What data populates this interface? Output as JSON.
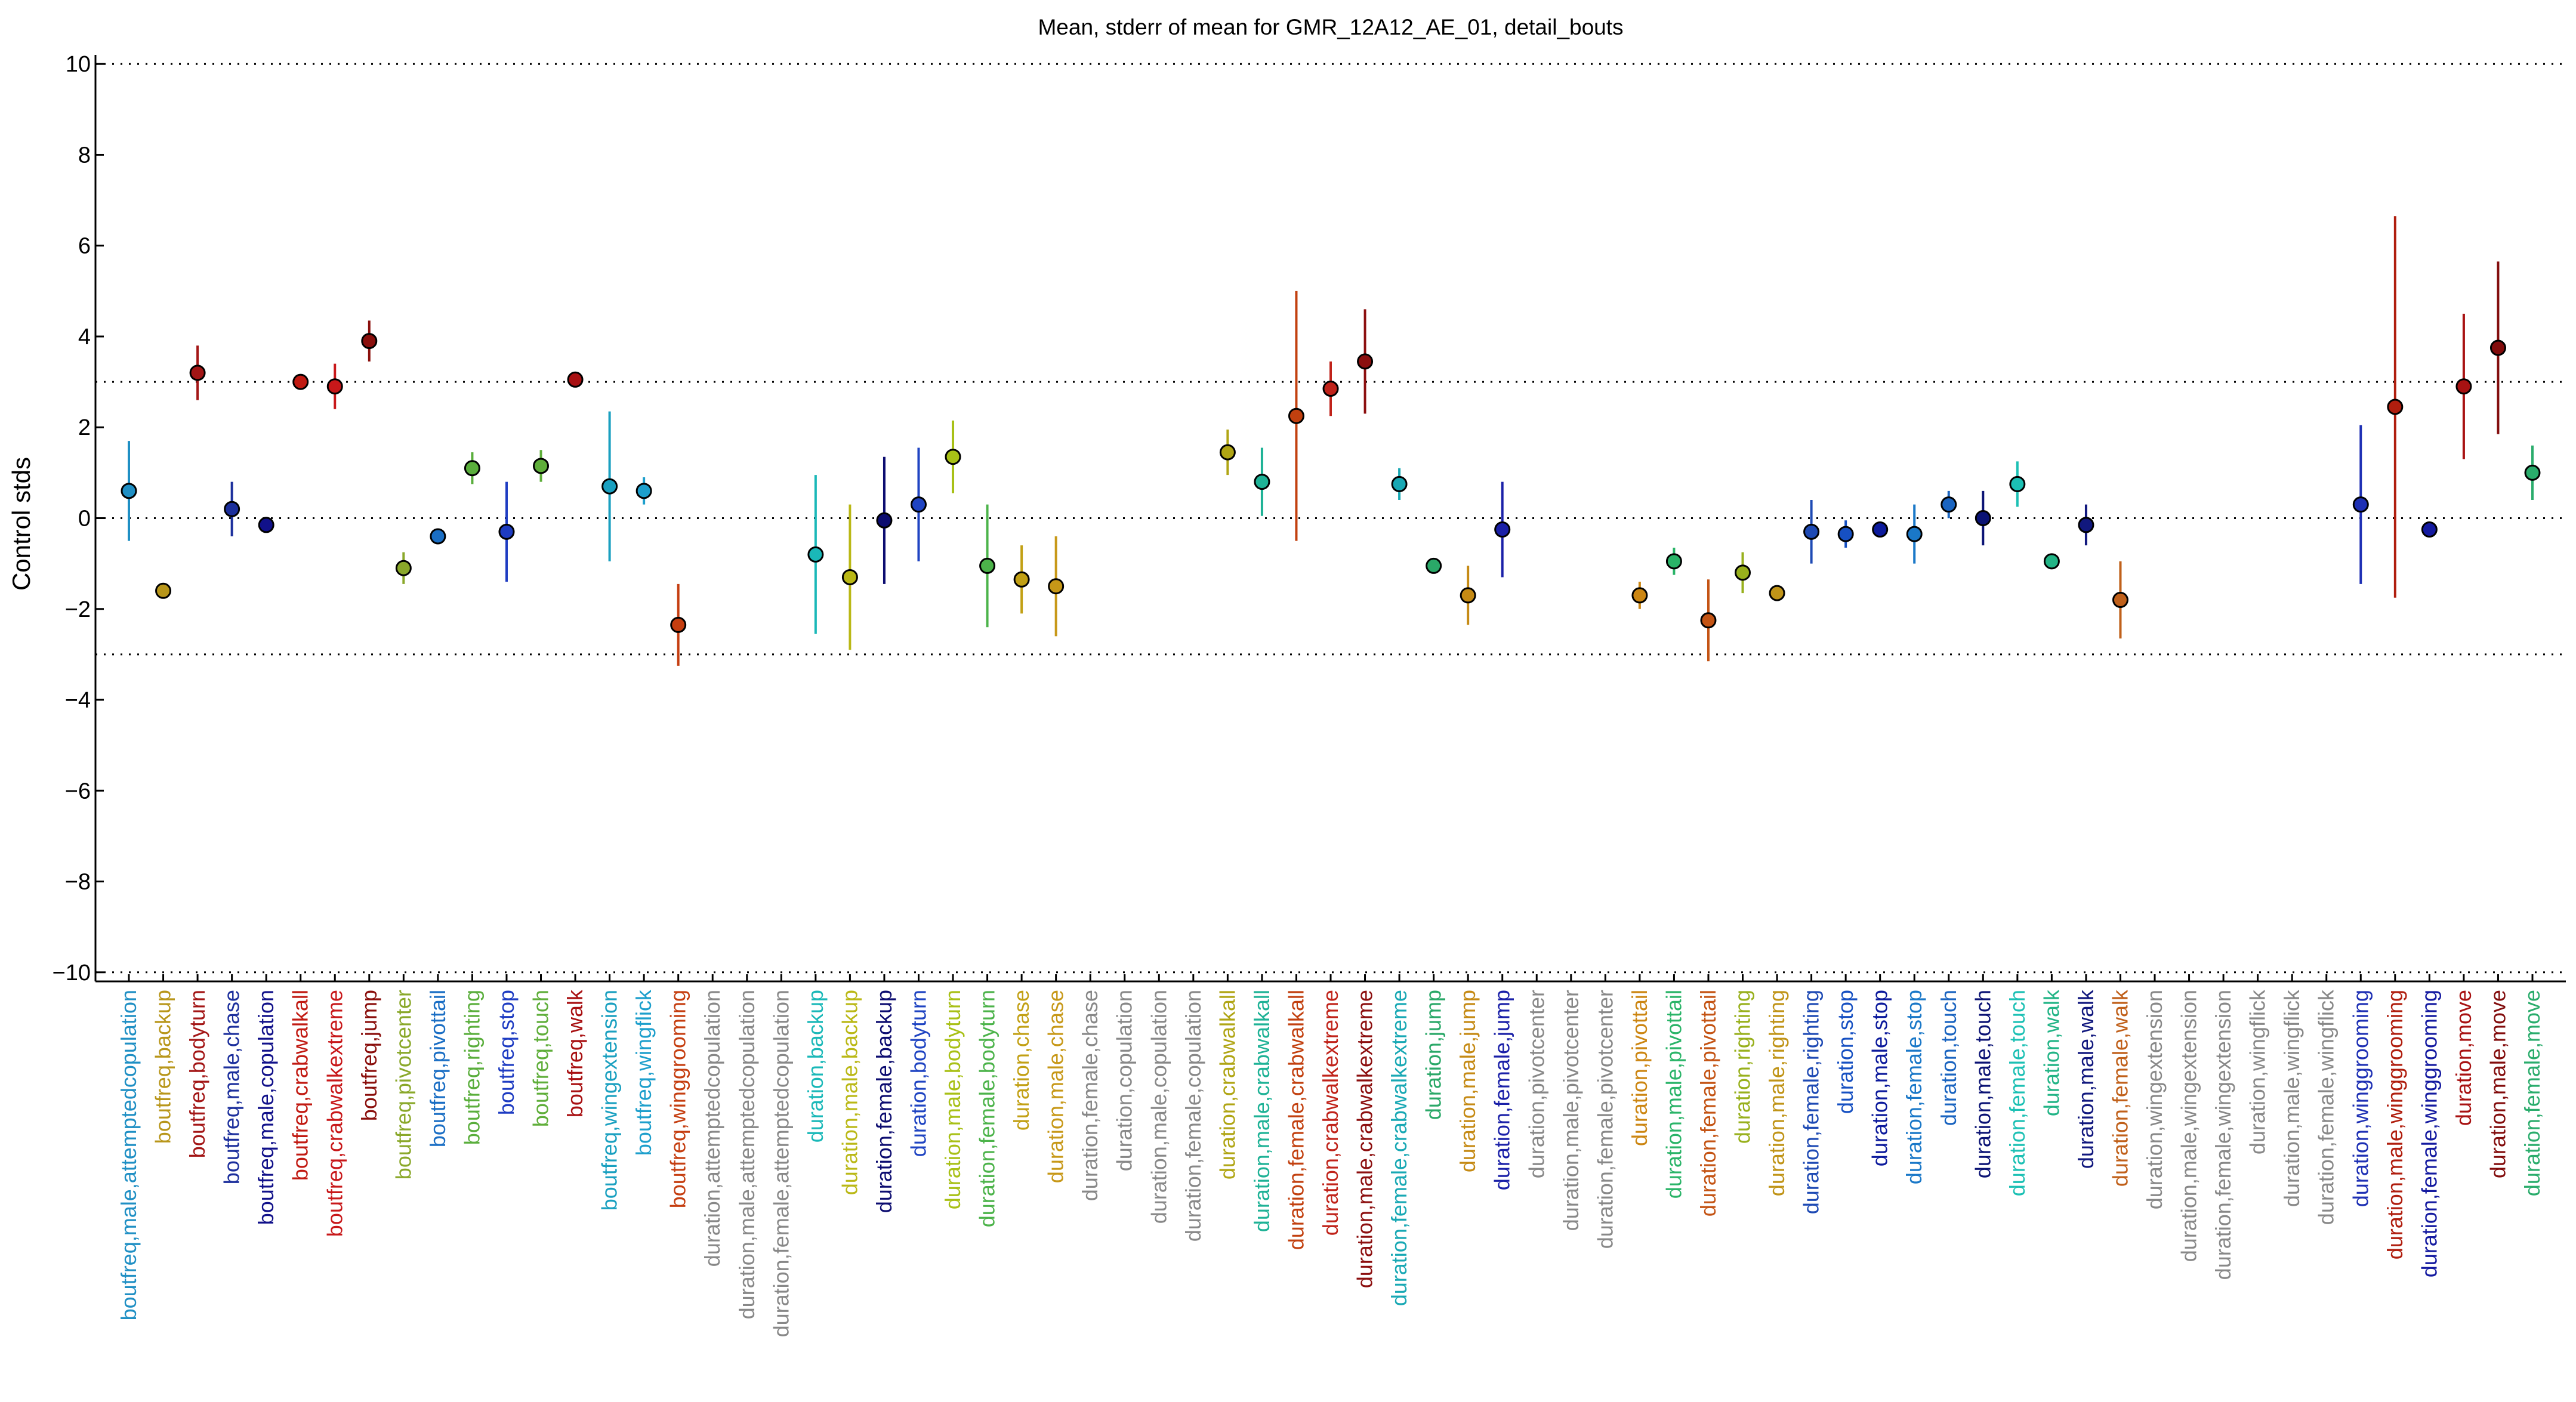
{
  "chart_data": {
    "type": "scatter",
    "title": "Mean, stderr of mean for GMR_12A12_AE_01, detail_bouts",
    "xlabel": "",
    "ylabel": "Control stds",
    "ylim": [
      -10.2,
      10.2
    ],
    "yticks": [
      10,
      8,
      6,
      4,
      2,
      0,
      -2,
      -4,
      -6,
      -8,
      -10
    ],
    "reference_lines": [
      10,
      3,
      0,
      -3,
      -10
    ],
    "grid": false,
    "legend": "none",
    "missing_color": "#888888",
    "categories": [
      "boutfreq,male,attemptedcopulation",
      "boutfreq,backup",
      "boutfreq,bodyturn",
      "boutfreq,male,chase",
      "boutfreq,male,copulation",
      "boutfreq,crabwalkall",
      "boutfreq,crabwalkextreme",
      "boutfreq,jump",
      "boutfreq,pivotcenter",
      "boutfreq,pivottail",
      "boutfreq,righting",
      "boutfreq,stop",
      "boutfreq,touch",
      "boutfreq,walk",
      "boutfreq,wingextension",
      "boutfreq,wingflick",
      "boutfreq,winggrooming",
      "duration,attemptedcopulation",
      "duration,male,attemptedcopulation",
      "duration,female,attemptedcopulation",
      "duration,backup",
      "duration,male,backup",
      "duration,female,backup",
      "duration,bodyturn",
      "duration,male,bodyturn",
      "duration,female,bodyturn",
      "duration,chase",
      "duration,male,chase",
      "duration,female,chase",
      "duration,copulation",
      "duration,male,copulation",
      "duration,female,copulation",
      "duration,crabwalkall",
      "duration,male,crabwalkall",
      "duration,female,crabwalkall",
      "duration,crabwalkextreme",
      "duration,male,crabwalkextreme",
      "duration,female,crabwalkextreme",
      "duration,jump",
      "duration,male,jump",
      "duration,female,jump",
      "duration,pivotcenter",
      "duration,male,pivotcenter",
      "duration,female,pivotcenter",
      "duration,pivottail",
      "duration,male,pivottail",
      "duration,female,pivottail",
      "duration,righting",
      "duration,male,righting",
      "duration,female,righting",
      "duration,stop",
      "duration,male,stop",
      "duration,female,stop",
      "duration,touch",
      "duration,male,touch",
      "duration,female,touch",
      "duration,walk",
      "duration,male,walk",
      "duration,female,walk",
      "duration,wingextension",
      "duration,male,wingextension",
      "duration,female,wingextension",
      "duration,wingflick",
      "duration,male,wingflick",
      "duration,female,wingflick",
      "duration,winggrooming",
      "duration,male,winggrooming",
      "duration,female,winggrooming",
      "duration,move",
      "duration,male,move",
      "duration,female,move"
    ],
    "series": [
      {
        "values": [
          0.6,
          -1.6,
          3.2,
          0.2,
          -0.15,
          3.0,
          2.9,
          3.9,
          -1.1,
          -0.4,
          1.1,
          -0.3,
          1.15,
          3.05,
          0.7,
          0.6,
          -2.35,
          null,
          null,
          null,
          -0.8,
          -1.3,
          -0.05,
          0.3,
          1.35,
          -1.05,
          -1.35,
          -1.5,
          null,
          null,
          null,
          null,
          1.45,
          0.8,
          2.25,
          2.85,
          3.45,
          0.75,
          -1.05,
          -1.7,
          -0.25,
          null,
          null,
          null,
          -1.7,
          -0.95,
          -2.25,
          -1.2,
          -1.65,
          -0.3,
          -0.35,
          -0.25,
          -0.35,
          0.3,
          0.0,
          0.75,
          -0.95,
          -0.15,
          -1.8,
          null,
          null,
          null,
          null,
          null,
          null,
          0.3,
          2.45,
          -0.25,
          2.9,
          3.75,
          1.0
        ],
        "errors": [
          1.1,
          0.0,
          0.6,
          0.6,
          0.0,
          0.0,
          0.5,
          0.45,
          0.35,
          0.0,
          0.35,
          1.1,
          0.35,
          0.0,
          1.65,
          0.3,
          0.9,
          null,
          null,
          null,
          1.75,
          1.6,
          1.4,
          1.25,
          0.8,
          1.35,
          0.75,
          1.1,
          null,
          null,
          null,
          null,
          0.5,
          0.75,
          2.75,
          0.6,
          1.15,
          0.35,
          0.0,
          0.65,
          1.05,
          null,
          null,
          null,
          0.3,
          0.3,
          0.9,
          0.45,
          0.0,
          0.7,
          0.3,
          0.0,
          0.65,
          0.3,
          0.6,
          0.5,
          0.0,
          0.45,
          0.85,
          null,
          null,
          null,
          null,
          null,
          null,
          1.75,
          4.2,
          0.0,
          1.6,
          1.9,
          0.6
        ],
        "colors": [
          "#1f8fc4",
          "#b8961a",
          "#a31616",
          "#1c2f9c",
          "#11118a",
          "#c11a12",
          "#c8181a",
          "#8a0f0c",
          "#8aa82a",
          "#1a6ec4",
          "#5aae3c",
          "#1e3cc2",
          "#5fae3a",
          "#a81012",
          "#1aa0c0",
          "#1d9fcc",
          "#c53e10",
          "#888888",
          "#888888",
          "#888888",
          "#1ab8b8",
          "#bab816",
          "#0c0c70",
          "#1f44c2",
          "#a8c016",
          "#4cb34a",
          "#c2a014",
          "#c79818",
          "#888888",
          "#888888",
          "#888888",
          "#888888",
          "#b0a514",
          "#1eb296",
          "#c2400f",
          "#c0231a",
          "#8c0f0f",
          "#18a8b4",
          "#2aa868",
          "#c58a14",
          "#1a20a8",
          "#888888",
          "#888888",
          "#888888",
          "#cc8612",
          "#2ab468",
          "#c45414",
          "#98b01c",
          "#c09418",
          "#1e4ab4",
          "#1650c2",
          "#0c1a9c",
          "#1a78c8",
          "#1a64c0",
          "#0a1274",
          "#1cc0b4",
          "#22b486",
          "#11187e",
          "#c0601a",
          "#888888",
          "#888888",
          "#888888",
          "#888888",
          "#888888",
          "#888888",
          "#1e30b4",
          "#b01e0e",
          "#141aa0",
          "#a81212",
          "#820c0c",
          "#2aac6c"
        ]
      }
    ]
  }
}
